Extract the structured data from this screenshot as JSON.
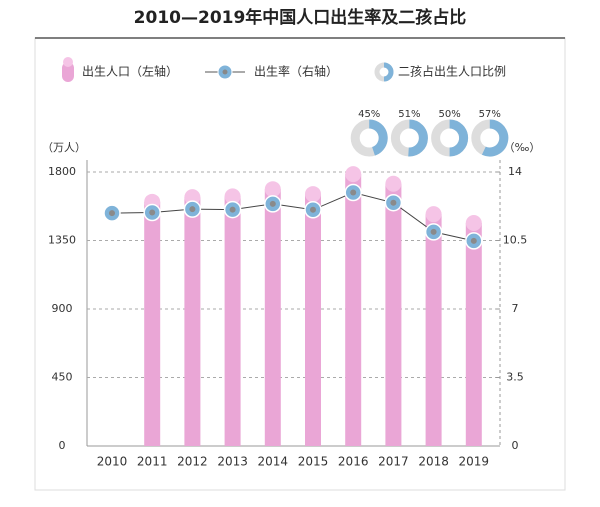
{
  "chart_data": {
    "type": "bar",
    "title": "2010—2019年中国人口出生率及二孩占比",
    "categories": [
      "2010",
      "2011",
      "2012",
      "2013",
      "2014",
      "2015",
      "2016",
      "2017",
      "2018",
      "2019"
    ],
    "y_unit": "（万人）",
    "y2_unit": "（‰）",
    "ylim": [
      0,
      1800
    ],
    "yticks": [
      0,
      450,
      900,
      1350,
      1800
    ],
    "y2lim": [
      0,
      14
    ],
    "y2ticks": [
      0,
      3.5,
      7,
      10.5,
      14
    ],
    "grid": true,
    "series": [
      {
        "name": "出生人口（左轴）",
        "type": "bar",
        "color": "#eaa6d6",
        "values": [
          null,
          1604,
          1635,
          1640,
          1687,
          1655,
          1786,
          1723,
          1523,
          1465
        ]
      },
      {
        "name": "出生率（右轴）",
        "type": "line",
        "axis": "y2",
        "color": "#7fb3d9",
        "values": [
          11.9,
          11.93,
          12.1,
          12.08,
          12.37,
          12.07,
          12.95,
          12.43,
          10.94,
          10.48
        ]
      },
      {
        "name": "二孩占出生人口比例",
        "type": "donut",
        "color": "#7fb3d9",
        "values": [
          null,
          null,
          null,
          null,
          null,
          null,
          45,
          51,
          50,
          57
        ],
        "value_labels": [
          null,
          null,
          null,
          null,
          null,
          null,
          "45%",
          "51%",
          "50%",
          "57%"
        ]
      }
    ]
  }
}
